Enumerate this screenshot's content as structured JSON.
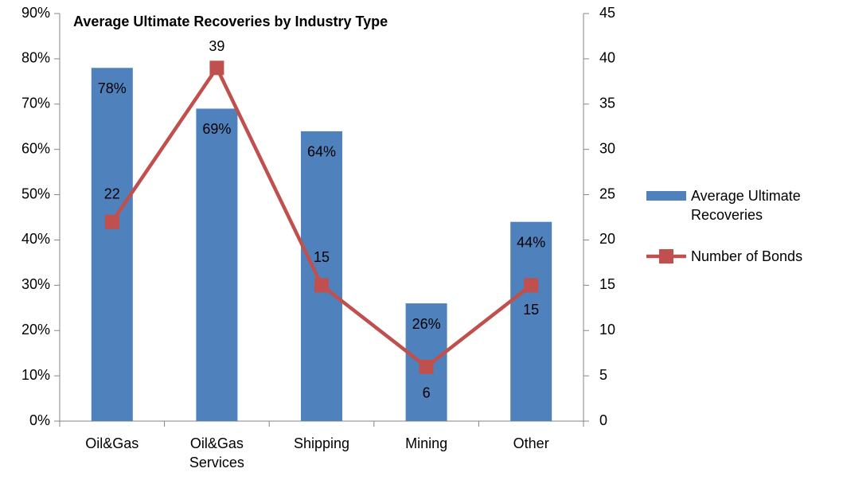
{
  "chart_data": {
    "type": "bar_line",
    "title": "Average Ultimate Recoveries by Industry Type",
    "categories": [
      "Oil&Gas",
      "Oil&Gas Services",
      "Shipping",
      "Mining",
      "Other"
    ],
    "series": [
      {
        "name": "Average Ultimate Recoveries",
        "type": "bar",
        "color": "#4f81bd",
        "axis": "y",
        "values": [
          78,
          69,
          64,
          26,
          44
        ],
        "value_labels": [
          "78%",
          "69%",
          "64%",
          "26%",
          "44%"
        ]
      },
      {
        "name": "Number of Bonds",
        "type": "line",
        "color": "#c0504d",
        "axis": "y2",
        "values": [
          22,
          39,
          15,
          6,
          15
        ]
      }
    ],
    "ylim": [
      0,
      90
    ],
    "yticks": [
      {
        "value": 0,
        "label": "0%"
      },
      {
        "value": 10,
        "label": "10%"
      },
      {
        "value": 20,
        "label": "20%"
      },
      {
        "value": 30,
        "label": "30%"
      },
      {
        "value": 40,
        "label": "40%"
      },
      {
        "value": 50,
        "label": "50%"
      },
      {
        "value": 60,
        "label": "60%"
      },
      {
        "value": 70,
        "label": "70%"
      },
      {
        "value": 80,
        "label": "80%"
      },
      {
        "value": 90,
        "label": "90%"
      }
    ],
    "y2lim": [
      0,
      45
    ],
    "y2ticks": [
      0,
      5,
      10,
      15,
      20,
      25,
      30,
      35,
      40,
      45
    ],
    "legend": "right"
  }
}
